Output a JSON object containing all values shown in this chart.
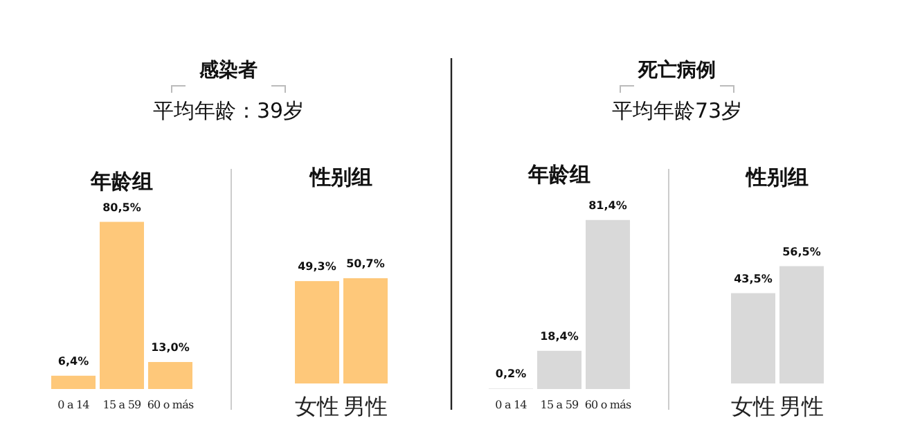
{
  "chart_data": [
    {
      "type": "bar",
      "title": "年龄组",
      "annotations": [
        "感染者",
        "平均年龄：39岁"
      ],
      "categories": [
        "0 a 14",
        "15 a 59",
        "60 o más"
      ],
      "values": [
        6.4,
        80.5,
        13.0
      ],
      "value_labels": [
        "6,4%",
        "80,5%",
        "13,0%"
      ],
      "color": "#fec87a"
    },
    {
      "type": "bar",
      "title": "性别组",
      "categories": [
        "女性",
        "男性"
      ],
      "values": [
        49.3,
        50.7
      ],
      "value_labels": [
        "49,3%",
        "50,7%"
      ],
      "color": "#fec87a"
    },
    {
      "type": "bar",
      "title": "年龄组",
      "annotations": [
        "死亡病例",
        "平均年龄73岁"
      ],
      "categories": [
        "0 a 14",
        "15 a 59",
        "60 o más"
      ],
      "values": [
        0.2,
        18.4,
        81.4
      ],
      "value_labels": [
        "0,2%",
        "18,4%",
        "81,4%"
      ],
      "color": "#d9d9d9"
    },
    {
      "type": "bar",
      "title": "性别组",
      "categories": [
        "女性",
        "男性"
      ],
      "values": [
        43.5,
        56.5
      ],
      "value_labels": [
        "43,5%",
        "56,5%"
      ],
      "color": "#d9d9d9"
    }
  ]
}
